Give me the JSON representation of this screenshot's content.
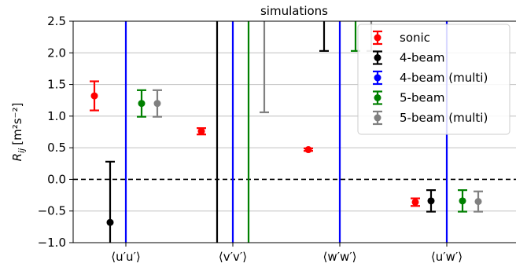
{
  "chart_data": {
    "type": "scatter",
    "title": "simulations",
    "ylabel_base": "R",
    "ylabel_sub": "ij",
    "ylabel_unit": "[m²s⁻²]",
    "ylim": [
      -1.0,
      2.5
    ],
    "yticks": [
      -1.0,
      -0.5,
      0.0,
      0.5,
      1.0,
      1.5,
      2.0,
      2.5
    ],
    "ytick_labels": [
      "−1.0",
      "−0.5",
      "0.0",
      "0.5",
      "1.0",
      "1.5",
      "2.0",
      "2.5"
    ],
    "categories": [
      "⟨u′u′⟩",
      "⟨v′v′⟩",
      "⟨w′w′⟩",
      "⟨u′w′⟩"
    ],
    "grid": "horizontal",
    "zero_line": "dashed",
    "legend_placement": "top-right",
    "series": [
      {
        "name": "sonic",
        "color": "#ff0000",
        "points": [
          {
            "y": 1.32,
            "lo": 1.09,
            "hi": 1.55
          },
          {
            "y": 0.76,
            "lo": 0.71,
            "hi": 0.81
          },
          {
            "y": 0.47,
            "lo": 0.45,
            "hi": 0.49
          },
          {
            "y": -0.36,
            "lo": -0.42,
            "hi": -0.3
          }
        ]
      },
      {
        "name": "4-beam",
        "color": "#000000",
        "points": [
          {
            "y": -0.68,
            "lo": -1.05,
            "hi": 0.28
          },
          {
            "y": null,
            "lo": -1.05,
            "hi": 2.6
          },
          {
            "y": null,
            "lo": 2.03,
            "hi": 2.6
          },
          {
            "y": -0.34,
            "lo": -0.51,
            "hi": -0.17
          }
        ]
      },
      {
        "name": "4-beam (multi)",
        "color": "#0000ff",
        "points": [
          {
            "y": null,
            "lo": -1.05,
            "hi": 2.6
          },
          {
            "y": null,
            "lo": -1.05,
            "hi": 2.6
          },
          {
            "y": null,
            "lo": -1.05,
            "hi": 2.6
          },
          {
            "y": null,
            "lo": -1.05,
            "hi": 2.6
          }
        ]
      },
      {
        "name": "5-beam",
        "color": "#008000",
        "points": [
          {
            "y": 1.2,
            "lo": 0.99,
            "hi": 1.41
          },
          {
            "y": null,
            "lo": -1.05,
            "hi": 2.6
          },
          {
            "y": null,
            "lo": 2.03,
            "hi": 2.6
          },
          {
            "y": -0.34,
            "lo": -0.51,
            "hi": -0.17
          }
        ]
      },
      {
        "name": "5-beam (multi)",
        "color": "#808080",
        "points": [
          {
            "y": 1.2,
            "lo": 0.99,
            "hi": 1.41
          },
          {
            "y": null,
            "lo": 1.06,
            "hi": 2.6
          },
          {
            "y": null,
            "lo": 2.03,
            "hi": 2.6
          },
          {
            "y": -0.35,
            "lo": -0.51,
            "hi": -0.19
          }
        ]
      }
    ]
  }
}
